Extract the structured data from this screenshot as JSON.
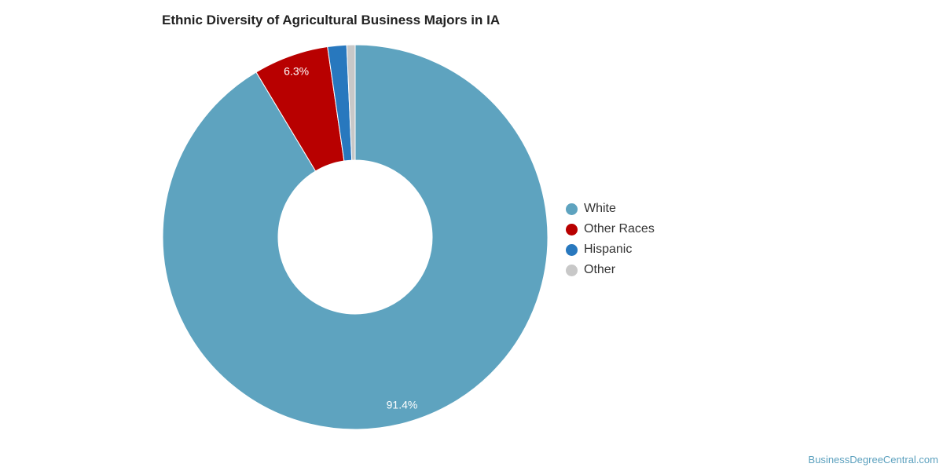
{
  "chart_data": {
    "type": "pie",
    "variant": "donut",
    "title": "Ethnic Diversity of Agricultural Business Majors in IA",
    "slices": [
      {
        "label": "White",
        "value": 91.4,
        "value_label": "91.4%",
        "color": "#5ea3bf"
      },
      {
        "label": "Other Races",
        "value": 6.3,
        "value_label": "6.3%",
        "color": "#b80000"
      },
      {
        "label": "Hispanic",
        "value": 1.6,
        "value_label": "",
        "color": "#2878be"
      },
      {
        "label": "Other",
        "value": 0.7,
        "value_label": "",
        "color": "#c8c8c8"
      }
    ],
    "legend_position": "right"
  },
  "credit": "BusinessDegreeCentral.com"
}
